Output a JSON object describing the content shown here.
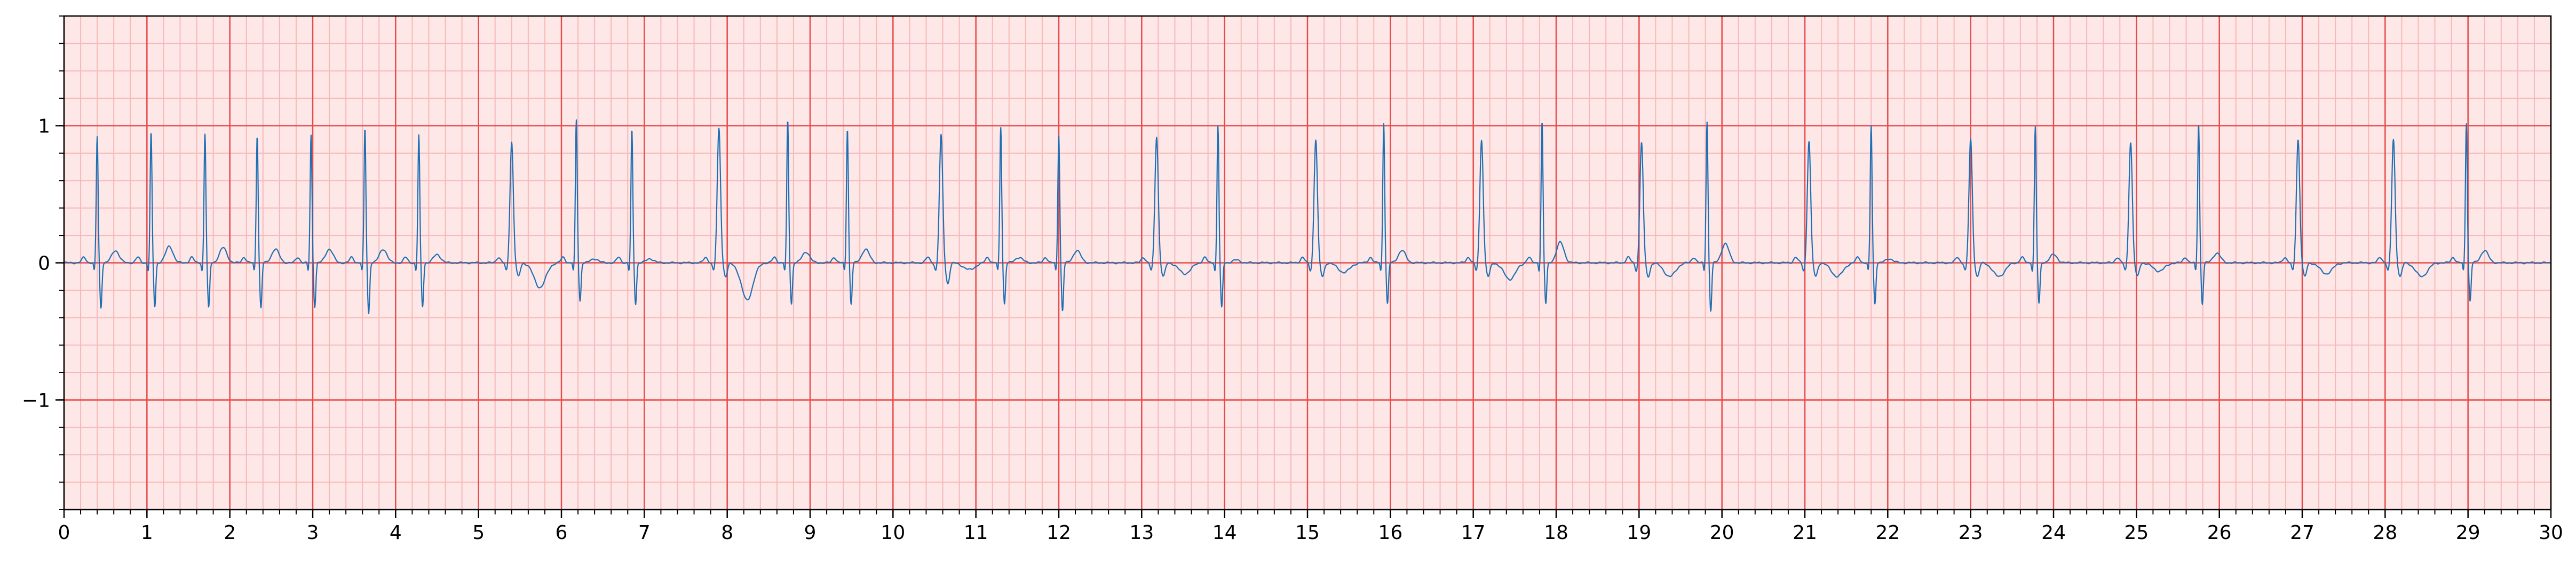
{
  "chart_data": {
    "type": "line",
    "title": "",
    "xlabel": "",
    "ylabel": "",
    "xlim": [
      0,
      30
    ],
    "ylim": [
      -1.8,
      1.8
    ],
    "x_ticks": [
      0,
      1,
      2,
      3,
      4,
      5,
      6,
      7,
      8,
      9,
      10,
      11,
      12,
      13,
      14,
      15,
      16,
      17,
      18,
      19,
      20,
      21,
      22,
      23,
      24,
      25,
      26,
      27,
      28,
      29,
      30
    ],
    "x_tick_labels": [
      "0",
      "1",
      "2",
      "3",
      "4",
      "5",
      "6",
      "7",
      "8",
      "9",
      "10",
      "11",
      "12",
      "13",
      "14",
      "15",
      "16",
      "17",
      "18",
      "19",
      "20",
      "21",
      "22",
      "23",
      "24",
      "25",
      "26",
      "27",
      "28",
      "29",
      "30"
    ],
    "y_ticks": [
      -1,
      0,
      1
    ],
    "y_tick_labels": [
      "−1",
      "0",
      "1"
    ],
    "grid": {
      "major": true,
      "minor": true,
      "major_x_step": 1.0,
      "minor_x_step": 0.2,
      "major_y_step": 1.0,
      "minor_y_step": 0.2,
      "major_color": "#e84a4a",
      "minor_color": "#f8b8b8"
    },
    "background": "#fde7e7",
    "series": [
      {
        "name": "",
        "color": "#1f6fb4",
        "beats": [
          {
            "t": 0.4,
            "r": 0.92,
            "s": -0.33,
            "t_wave": 0.09
          },
          {
            "t": 1.05,
            "r": 0.95,
            "s": -0.32,
            "t_wave": 0.12
          },
          {
            "t": 1.7,
            "r": 0.94,
            "s": -0.33,
            "t_wave": 0.11
          },
          {
            "t": 2.33,
            "r": 0.93,
            "s": -0.33,
            "t_wave": 0.1
          },
          {
            "t": 2.98,
            "r": 0.93,
            "s": -0.32,
            "t_wave": 0.1
          },
          {
            "t": 3.63,
            "r": 0.98,
            "s": -0.37,
            "t_wave": 0.1
          },
          {
            "t": 4.28,
            "r": 0.93,
            "s": -0.32,
            "t_wave": 0.06
          },
          {
            "t": 5.4,
            "r": 0.88,
            "s": -0.1,
            "t_wave": -0.18,
            "wide": true
          },
          {
            "t": 6.18,
            "r": 1.04,
            "s": -0.28,
            "t_wave": 0.03
          },
          {
            "t": 6.85,
            "r": 0.97,
            "s": -0.3,
            "t_wave": 0.03
          },
          {
            "t": 7.9,
            "r": 0.98,
            "s": -0.1,
            "t_wave": -0.27,
            "wide": true
          },
          {
            "t": 8.73,
            "r": 1.04,
            "s": -0.3,
            "t_wave": 0.08
          },
          {
            "t": 9.45,
            "r": 0.98,
            "s": -0.3,
            "t_wave": 0.1
          },
          {
            "t": 10.58,
            "r": 0.93,
            "s": -0.15,
            "t_wave": -0.05,
            "wide": true
          },
          {
            "t": 11.3,
            "r": 0.99,
            "s": -0.3,
            "t_wave": 0.04
          },
          {
            "t": 12.0,
            "r": 0.93,
            "s": -0.35,
            "t_wave": 0.09
          },
          {
            "t": 13.18,
            "r": 0.92,
            "s": -0.1,
            "t_wave": -0.08,
            "wide": true
          },
          {
            "t": 13.92,
            "r": 1.0,
            "s": -0.33,
            "t_wave": 0.02
          },
          {
            "t": 15.1,
            "r": 0.9,
            "s": -0.1,
            "t_wave": -0.07,
            "wide": true
          },
          {
            "t": 15.92,
            "r": 1.02,
            "s": -0.3,
            "t_wave": 0.09
          },
          {
            "t": 17.1,
            "r": 0.9,
            "s": -0.1,
            "t_wave": -0.12,
            "wide": true
          },
          {
            "t": 17.83,
            "r": 1.03,
            "s": -0.3,
            "t_wave": 0.15
          },
          {
            "t": 19.03,
            "r": 0.88,
            "s": -0.1,
            "t_wave": -0.1,
            "wide": true
          },
          {
            "t": 19.82,
            "r": 1.03,
            "s": -0.35,
            "t_wave": 0.14
          },
          {
            "t": 21.05,
            "r": 0.89,
            "s": -0.1,
            "t_wave": -0.1,
            "wide": true
          },
          {
            "t": 21.8,
            "r": 1.0,
            "s": -0.3,
            "t_wave": 0.03
          },
          {
            "t": 23.0,
            "r": 0.9,
            "s": -0.1,
            "t_wave": -0.1,
            "wide": true
          },
          {
            "t": 23.78,
            "r": 0.99,
            "s": -0.3,
            "t_wave": 0.06
          },
          {
            "t": 24.93,
            "r": 0.88,
            "s": -0.1,
            "t_wave": -0.06,
            "wide": true
          },
          {
            "t": 25.75,
            "r": 1.02,
            "s": -0.3,
            "t_wave": 0.07
          },
          {
            "t": 26.95,
            "r": 0.9,
            "s": -0.1,
            "t_wave": -0.08,
            "wide": true
          },
          {
            "t": 28.1,
            "r": 0.9,
            "s": -0.1,
            "t_wave": -0.1,
            "wide": true
          },
          {
            "t": 28.98,
            "r": 1.02,
            "s": -0.28,
            "t_wave": 0.09
          }
        ]
      }
    ]
  }
}
